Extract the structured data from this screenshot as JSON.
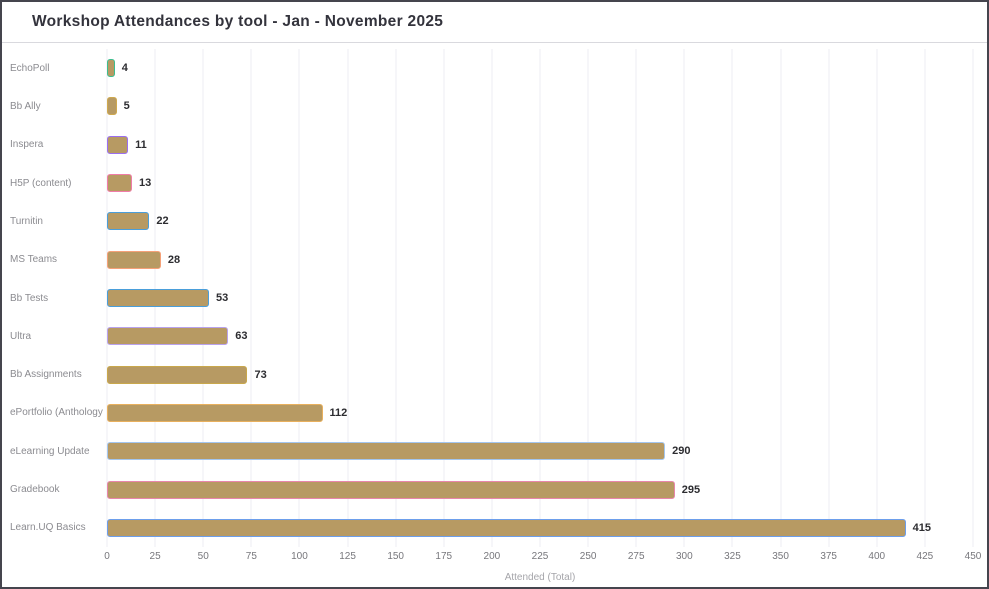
{
  "window": {
    "title": "Workshop Attendances by tool - Jan - November 2025"
  },
  "chart_data": {
    "type": "bar",
    "orientation": "horizontal",
    "title": "Workshop Attendances by tool - Jan - November 2025",
    "xlabel": "Attended (Total)",
    "ylabel": "",
    "xlim": [
      0,
      450
    ],
    "x_ticks": [
      0,
      25,
      50,
      75,
      100,
      125,
      150,
      175,
      200,
      225,
      250,
      275,
      300,
      325,
      350,
      375,
      400,
      425,
      450
    ],
    "grid": true,
    "legend": "none",
    "bar_fill_color": "#b79a63",
    "categories": [
      "EchoPoll",
      "Bb Ally",
      "Inspera",
      "H5P (content)",
      "Turnitin",
      "MS Teams",
      "Bb Tests",
      "Ultra",
      "Bb Assignments",
      "ePortfolio (Anthology",
      "eLearning Update",
      "Gradebook",
      "Learn.UQ Basics"
    ],
    "values": [
      4,
      5,
      11,
      13,
      22,
      28,
      53,
      63,
      73,
      112,
      290,
      295,
      415
    ],
    "value_labels": [
      "4",
      "5",
      "11",
      "13",
      "22",
      "28",
      "53",
      "63",
      "73",
      "112",
      "290",
      "295",
      "415"
    ],
    "bar_border_colors": [
      "#3dbd8e",
      "#cfa94f",
      "#9b6ff0",
      "#f07ca8",
      "#4a9eda",
      "#f5a178",
      "#4a9eda",
      "#b9a2ec",
      "#c9a84c",
      "#e8b05e",
      "#a4c6ee",
      "#e886ab",
      "#6d9eeb"
    ]
  }
}
